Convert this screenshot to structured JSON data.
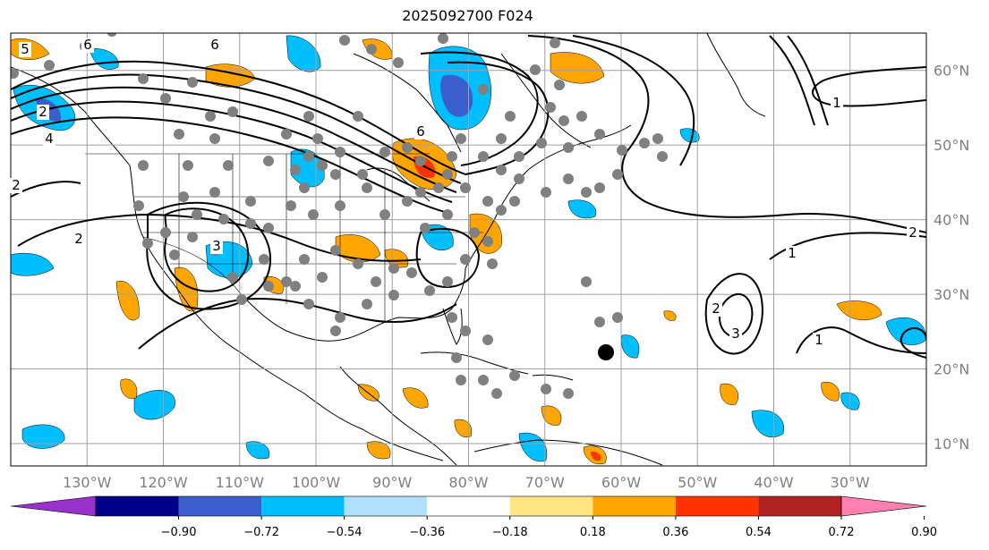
{
  "title": "2025092700 F024",
  "map": {
    "lon_range": [
      -140,
      -20
    ],
    "lat_range": [
      7,
      65
    ],
    "lon_labels": [
      "130°W",
      "120°W",
      "110°W",
      "100°W",
      "90°W",
      "80°W",
      "70°W",
      "60°W",
      "50°W",
      "40°W",
      "30°W"
    ],
    "lat_labels": [
      "60°N",
      "50°N",
      "40°N",
      "30°N",
      "20°N",
      "10°N"
    ],
    "contour_labels": [
      "1",
      "1",
      "2",
      "2",
      "2",
      "2",
      "3",
      "3",
      "4",
      "5",
      "6",
      "6",
      "6",
      "1",
      "2"
    ],
    "colors": {
      "grid": "#a0a0a0",
      "station_dot": "#808080",
      "marker": "#000000",
      "contour": "#000000"
    }
  },
  "colorbar": {
    "tick_labels": [
      "−0.90",
      "−0.72",
      "−0.54",
      "−0.36",
      "−0.18",
      "0.18",
      "0.36",
      "0.54",
      "0.72",
      "0.90"
    ],
    "colors": [
      "#9932cc",
      "#00008b",
      "#3a5fcd",
      "#00bfff",
      "#b0e0ff",
      "#ffffff",
      "#ffe680",
      "#ffa500",
      "#ff3300",
      "#b22222",
      "#ff80b0"
    ]
  }
}
